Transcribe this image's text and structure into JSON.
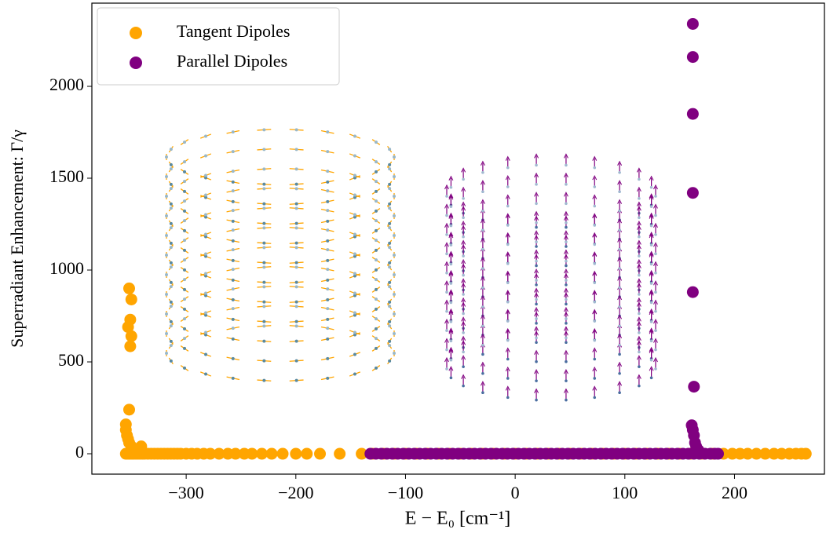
{
  "chart_data": {
    "type": "scatter",
    "xlabel": "E − E₀ [cm⁻¹]",
    "ylabel": "Superradiant Enhancement: Γ/γ",
    "xlim": [
      -386,
      282
    ],
    "ylim": [
      -111,
      2453
    ],
    "xticks": [
      {
        "value": -300,
        "label": "−300"
      },
      {
        "value": -200,
        "label": "−200"
      },
      {
        "value": -100,
        "label": "−100"
      },
      0,
      100,
      200
    ],
    "yticks": [
      0,
      500,
      1000,
      1500,
      2000
    ],
    "legend": "upper left",
    "series": [
      {
        "name": "Tangent Dipoles",
        "color": "#ffa500",
        "x": [
          -355,
          -354,
          -353,
          -352,
          -351,
          -350,
          -349,
          -348,
          -346,
          -344,
          -342,
          -340,
          -338,
          -335,
          -332,
          -329,
          -326,
          -323,
          -320,
          -317,
          -314,
          -311,
          -308,
          -305,
          -300,
          -295,
          -290,
          -284,
          -278,
          -270,
          -262,
          -255,
          -247,
          -240,
          -231,
          -222,
          -212,
          -200,
          -190,
          -178,
          -160,
          -140,
          -130,
          -120,
          -110,
          -100,
          -90,
          -80,
          -70,
          -60,
          -50,
          -40,
          -30,
          -20,
          -10,
          0,
          10,
          20,
          30,
          40,
          50,
          60,
          70,
          80,
          90,
          100,
          110,
          120,
          130,
          140,
          150,
          160,
          170,
          180,
          190,
          198,
          205,
          212,
          220,
          228,
          236,
          243,
          250,
          256,
          261,
          265,
          -352,
          -350,
          -351,
          -353,
          -350,
          -351,
          -352,
          -355,
          -355,
          -354,
          -353,
          -352,
          -350,
          -341,
          -345
        ],
        "y": [
          0,
          0,
          0,
          0,
          0,
          0,
          0,
          0,
          0,
          0,
          0,
          0,
          0,
          0,
          0,
          0,
          0,
          0,
          0,
          0,
          0,
          0,
          0,
          0,
          0,
          0,
          0,
          0,
          0,
          0,
          0,
          0,
          0,
          0,
          0,
          0,
          0,
          0,
          0,
          0,
          0,
          0,
          0,
          0,
          0,
          0,
          0,
          0,
          0,
          0,
          0,
          0,
          0,
          0,
          0,
          0,
          0,
          0,
          0,
          0,
          0,
          0,
          0,
          0,
          0,
          0,
          0,
          0,
          0,
          0,
          0,
          0,
          0,
          0,
          0,
          0,
          0,
          0,
          0,
          0,
          0,
          0,
          0,
          0,
          0,
          0,
          900,
          840,
          730,
          690,
          640,
          585,
          240,
          160,
          130,
          100,
          80,
          60,
          40,
          40,
          20
        ]
      },
      {
        "name": "Parallel Dipoles",
        "color": "#800080",
        "x": [
          -132,
          -127,
          -122,
          -117,
          -112,
          -107,
          -102,
          -97,
          -92,
          -87,
          -82,
          -77,
          -72,
          -67,
          -62,
          -57,
          -52,
          -47,
          -42,
          -37,
          -32,
          -27,
          -22,
          -17,
          -12,
          -7,
          -2,
          3,
          8,
          13,
          18,
          23,
          28,
          33,
          38,
          43,
          48,
          53,
          58,
          63,
          68,
          73,
          78,
          83,
          88,
          93,
          98,
          103,
          108,
          113,
          118,
          123,
          128,
          133,
          138,
          143,
          148,
          153,
          158,
          163,
          168,
          173,
          178,
          182,
          185,
          162,
          162,
          162,
          162,
          162,
          163,
          161,
          162,
          163,
          164,
          165,
          167
        ],
        "y": [
          0,
          0,
          0,
          0,
          0,
          0,
          0,
          0,
          0,
          0,
          0,
          0,
          0,
          0,
          0,
          0,
          0,
          0,
          0,
          0,
          0,
          0,
          0,
          0,
          0,
          0,
          0,
          0,
          0,
          0,
          0,
          0,
          0,
          0,
          0,
          0,
          0,
          0,
          0,
          0,
          0,
          0,
          0,
          0,
          0,
          0,
          0,
          0,
          0,
          0,
          0,
          0,
          0,
          0,
          0,
          0,
          0,
          0,
          0,
          0,
          0,
          0,
          0,
          0,
          0,
          2340,
          2160,
          1850,
          1420,
          880,
          365,
          155,
          130,
          100,
          60,
          40,
          20
        ]
      }
    ]
  }
}
